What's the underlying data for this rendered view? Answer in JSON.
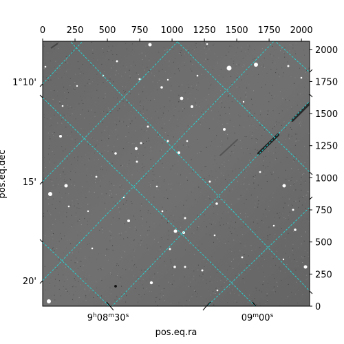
{
  "figure": {
    "xlabel": "pos.eq.ra",
    "ylabel": "pos.eq.dec",
    "pixel_x_ticks": [
      0,
      250,
      500,
      750,
      1000,
      1250,
      1500,
      1750,
      2000
    ],
    "pixel_y_ticks": [
      0,
      250,
      500,
      750,
      1000,
      1250,
      1500,
      1750,
      2000
    ],
    "ra_ticks": [
      {
        "h": "9",
        "m": "08",
        "s": "30"
      },
      {
        "m": "09",
        "s": "00"
      }
    ],
    "dec_ticks": [
      "1°10'",
      "15'",
      "20'"
    ],
    "grid_color": "#29d0d0",
    "image": "grayscale astronomical star field with RA/Dec coordinate grid overlay"
  }
}
